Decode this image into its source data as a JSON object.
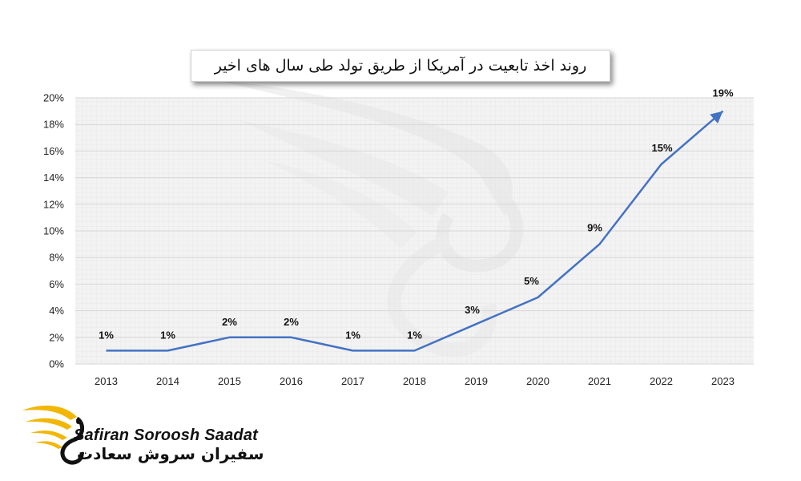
{
  "chart_data": {
    "type": "line",
    "title": "روند اخذ تابعیت در آمریکا از طریق تولد طی سال های اخیر",
    "categories": [
      "2013",
      "2014",
      "2015",
      "2016",
      "2017",
      "2018",
      "2019",
      "2020",
      "2021",
      "2022",
      "2023"
    ],
    "values": [
      1,
      1,
      2,
      2,
      1,
      1,
      3,
      5,
      9,
      15,
      19
    ],
    "data_labels": [
      "1%",
      "1%",
      "2%",
      "2%",
      "1%",
      "1%",
      "3%",
      "5%",
      "9%",
      "15%",
      "19%"
    ],
    "ylim": [
      0,
      20
    ],
    "y_ticks": [
      "0%",
      "2%",
      "4%",
      "6%",
      "8%",
      "10%",
      "12%",
      "14%",
      "16%",
      "18%",
      "20%"
    ],
    "xlabel": "",
    "ylabel": "",
    "grid": true,
    "line_color": "#4472C4"
  },
  "branding": {
    "name_en": "Safiran Soroosh Saadat",
    "name_fa": "سفیران سروش سعادت",
    "accent_color": "#F2B705"
  }
}
